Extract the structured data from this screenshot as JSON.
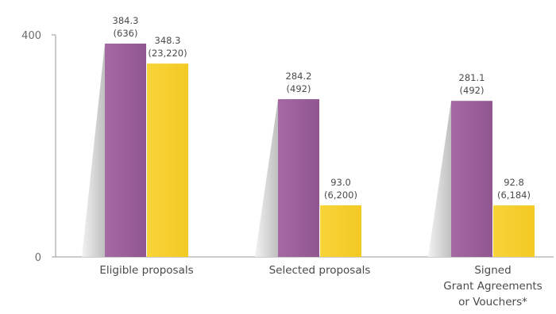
{
  "chart_data": {
    "type": "bar",
    "title": "",
    "xlabel": "",
    "ylabel": "",
    "ylim": [
      0,
      400
    ],
    "y_ticks": [
      "0",
      "400"
    ],
    "grid": false,
    "legend": "none",
    "categories": [
      [
        "Eligible proposals"
      ],
      [
        "Selected proposals"
      ],
      [
        "Signed",
        "Grant Agreements",
        "or Vouchers*"
      ]
    ],
    "series": [
      {
        "color": "#9b5f99",
        "values": [
          384.3,
          284.2,
          281.1
        ],
        "labels": [
          [
            "384.3",
            "(636)"
          ],
          [
            "284.2",
            "(492)"
          ],
          [
            "281.1",
            "(492)"
          ]
        ]
      },
      {
        "color": "#f6cf2b",
        "values": [
          348.3,
          93.0,
          92.8
        ],
        "labels": [
          [
            "348.3",
            "(23,220)"
          ],
          [
            "93.0",
            "(6,200)"
          ],
          [
            "92.8",
            "(6,184)"
          ]
        ]
      }
    ]
  }
}
